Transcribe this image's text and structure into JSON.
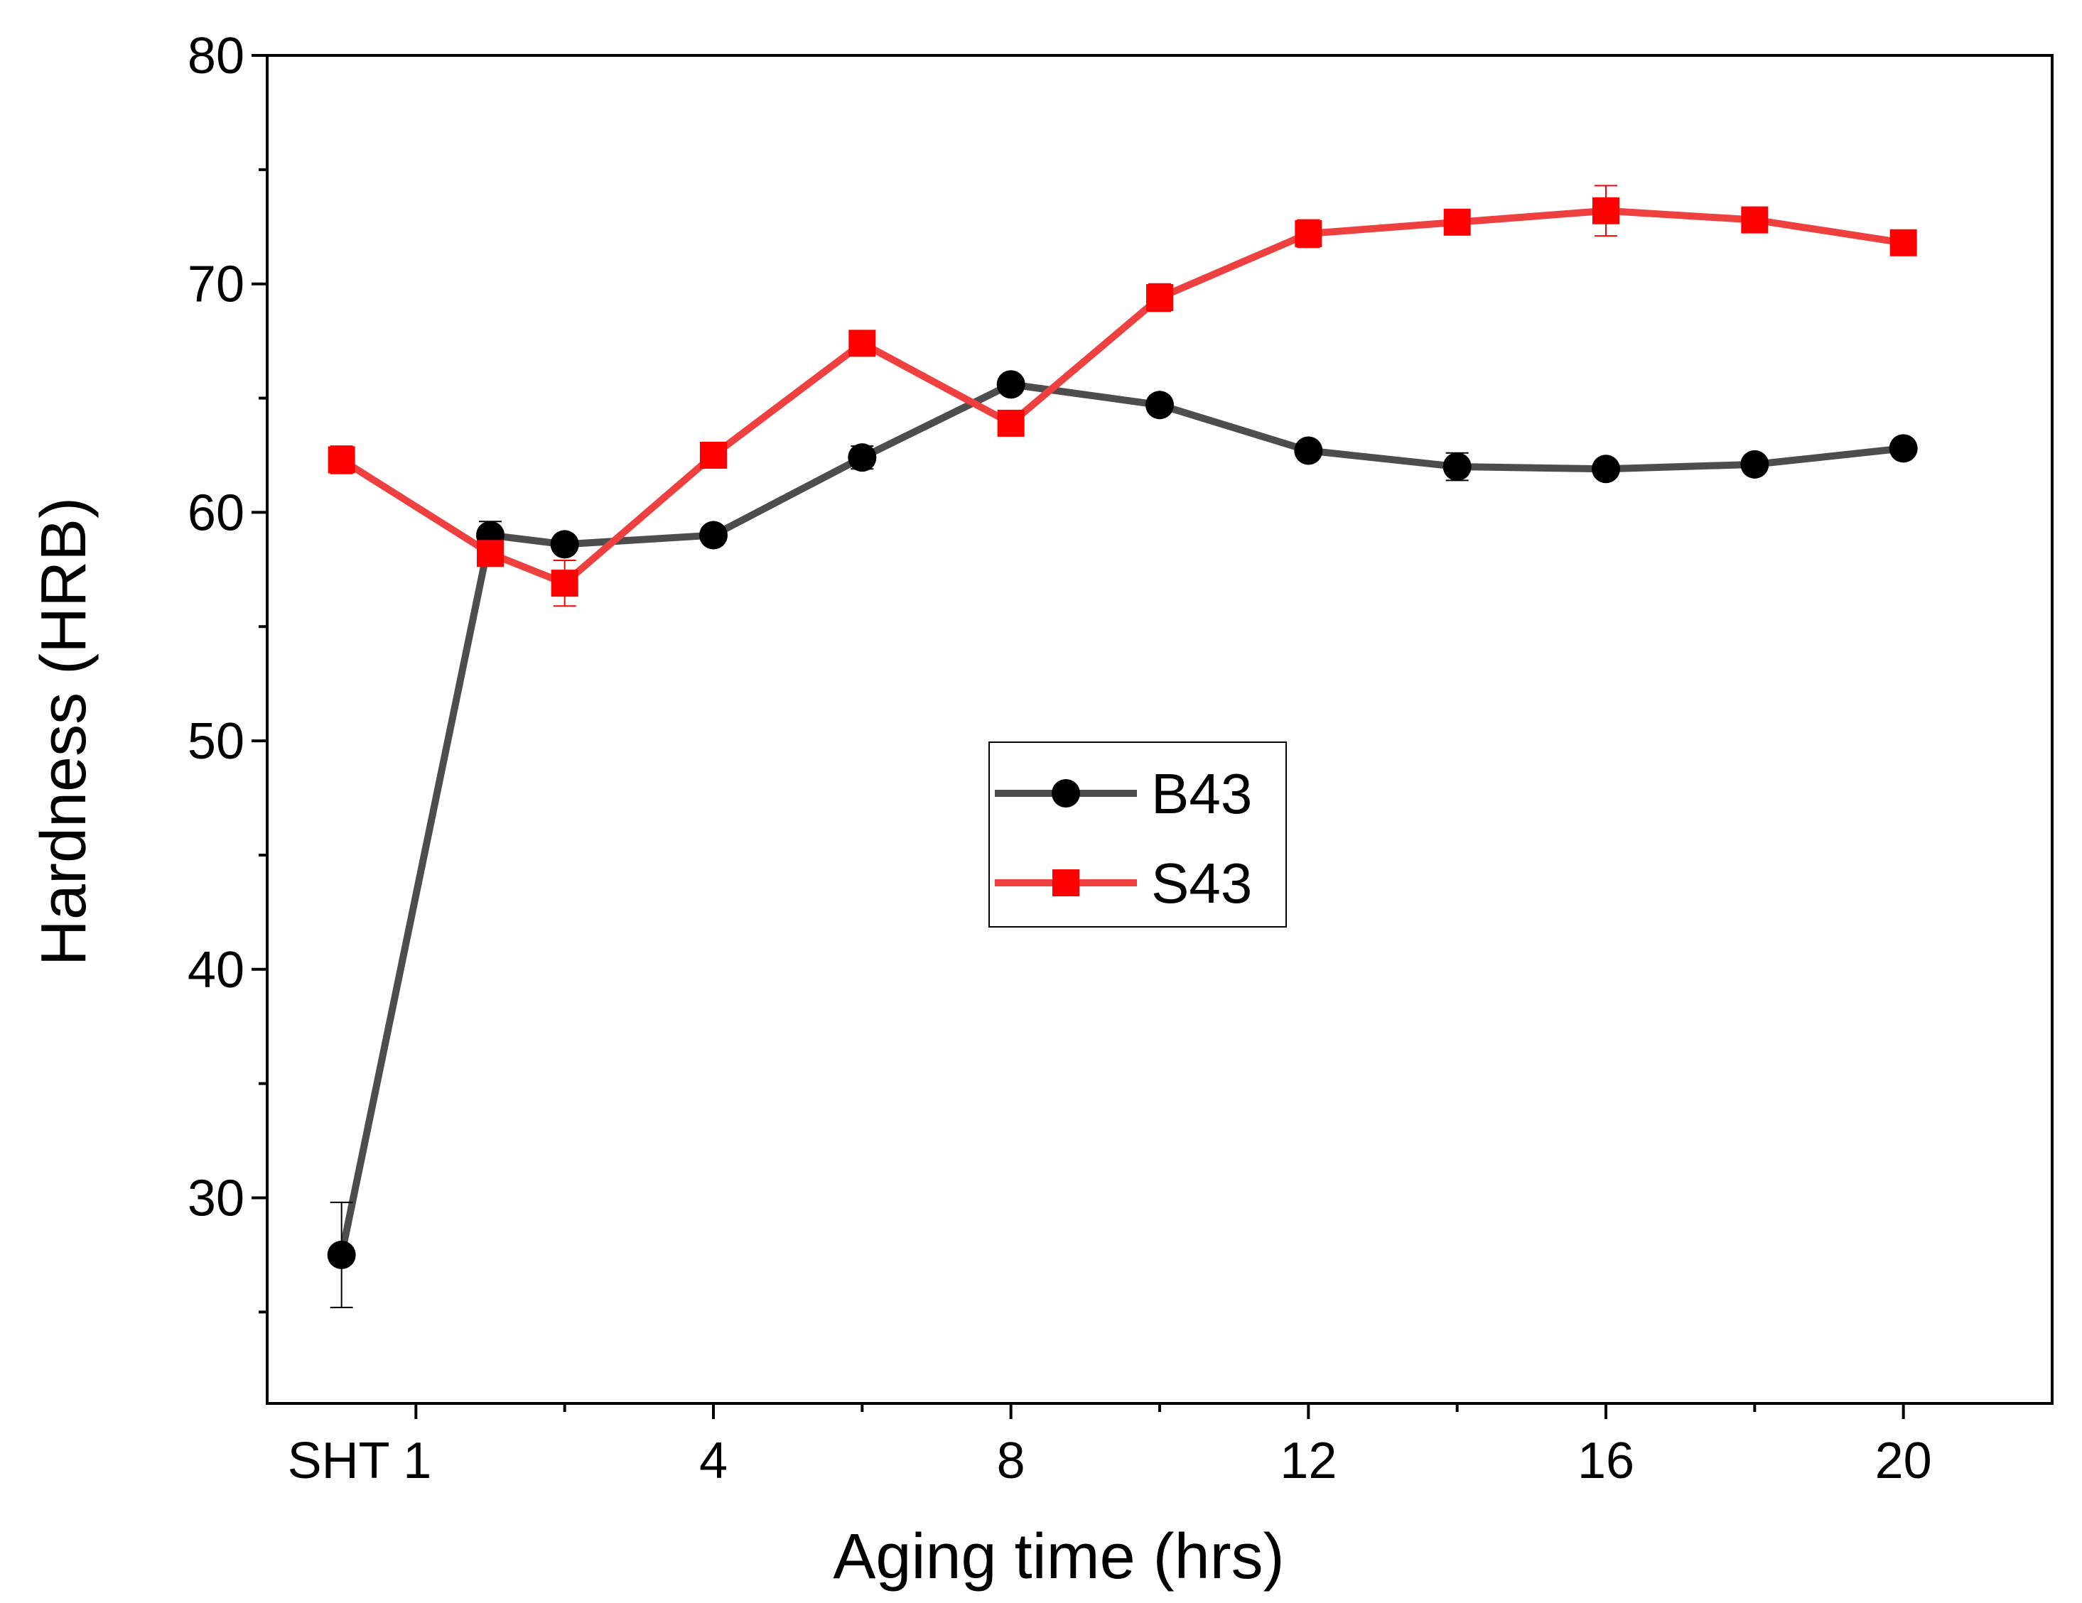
{
  "chart_data": {
    "type": "line",
    "xlabel": "Aging time (hrs)",
    "ylabel": "Hardness (HRB)",
    "xlim": [
      -2,
      22
    ],
    "ylim": [
      21,
      80
    ],
    "x_ticks": [
      {
        "value": 0,
        "label": "SHT 1"
      },
      {
        "value": 4,
        "label": "4"
      },
      {
        "value": 8,
        "label": "8"
      },
      {
        "value": 12,
        "label": "12"
      },
      {
        "value": 16,
        "label": "16"
      },
      {
        "value": 20,
        "label": "20"
      }
    ],
    "x_minor_ticks": [
      2,
      6,
      10,
      14,
      18
    ],
    "y_ticks": [
      30,
      40,
      50,
      60,
      70,
      80
    ],
    "y_minor_ticks": [
      25,
      35,
      45,
      55,
      65,
      75
    ],
    "legend_position": "center",
    "grid": false,
    "series": [
      {
        "name": "B43",
        "color": "#4d4d4d",
        "marker_color": "#000000",
        "marker": "circle",
        "x": [
          "SHT",
          1,
          2,
          4,
          6,
          8,
          10,
          12,
          14,
          16,
          18,
          20
        ],
        "values": [
          27.5,
          59.0,
          58.6,
          59.0,
          62.4,
          65.6,
          64.7,
          62.7,
          62.0,
          61.9,
          62.1,
          62.8
        ],
        "errors": [
          2.3,
          0.6,
          0.3,
          0.2,
          0.5,
          0.3,
          0.2,
          0.2,
          0.6,
          0.2,
          0.2,
          0.2
        ]
      },
      {
        "name": "S43",
        "color": "#ef4040",
        "marker_color": "#ff0000",
        "marker": "square",
        "x": [
          "SHT",
          1,
          2,
          4,
          6,
          8,
          10,
          12,
          14,
          16,
          18,
          20
        ],
        "values": [
          62.3,
          58.2,
          56.9,
          62.5,
          67.4,
          63.9,
          69.4,
          72.2,
          72.7,
          73.2,
          72.8,
          71.8
        ],
        "errors": [
          0.6,
          0.3,
          1.0,
          0.2,
          0.2,
          0.2,
          0.6,
          0.6,
          0.2,
          1.1,
          0.2,
          0.2
        ]
      }
    ]
  }
}
